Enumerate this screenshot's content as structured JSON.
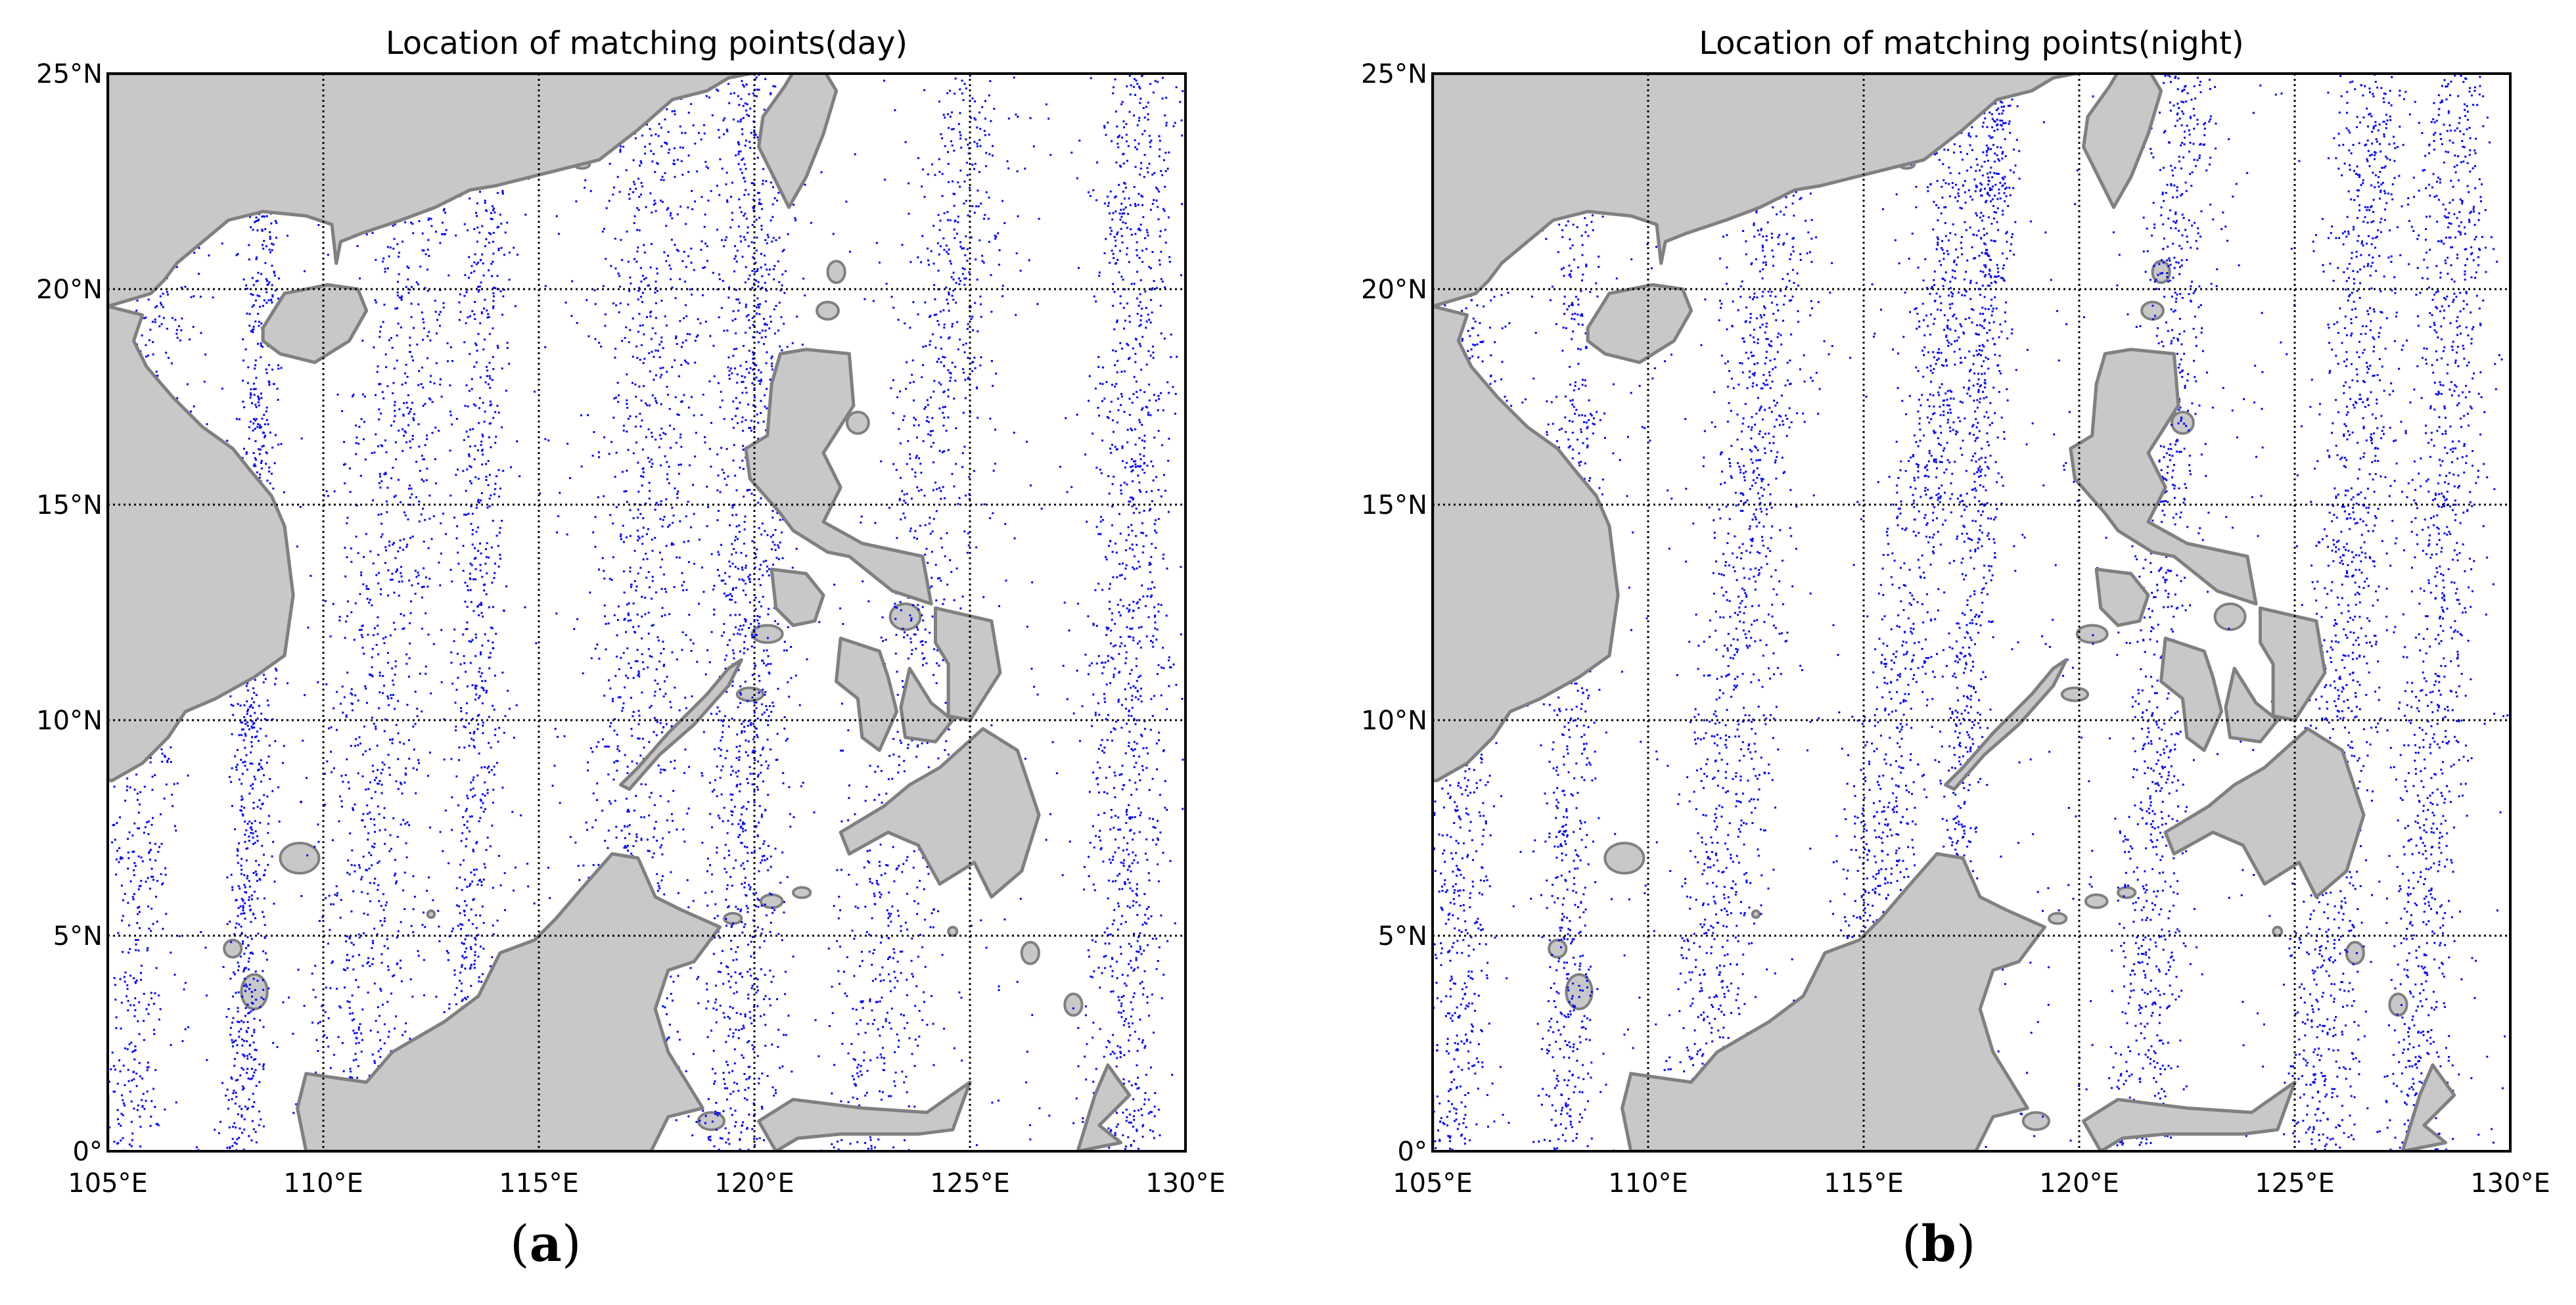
{
  "colors": {
    "land": "#c8c8c8",
    "coast": "#808080",
    "points": "#0000ff",
    "grid": "#000000",
    "frame": "#000000"
  },
  "axes": {
    "x_ticks": [
      "105°E",
      "110°E",
      "115°E",
      "120°E",
      "125°E",
      "130°E"
    ],
    "y_ticks": [
      "0°",
      "5°N",
      "10°N",
      "15°N",
      "20°N",
      "25°N"
    ],
    "lon_range": [
      105,
      130
    ],
    "lat_range": [
      0,
      25
    ],
    "grid": "dotted"
  },
  "panels": [
    {
      "title": "Location of matching points(day)",
      "label": "a",
      "point_density": "dense along track swaths"
    },
    {
      "title": "Location of matching points(night)",
      "label": "b",
      "point_density": "dense along track swaths"
    }
  ],
  "chart_data": [
    {
      "type": "scatter",
      "title": "Location of matching points(day)",
      "xlim": [
        105,
        130
      ],
      "ylim": [
        0,
        25
      ],
      "x_ticks": [
        "105°E",
        "110°E",
        "115°E",
        "120°E",
        "125°E",
        "130°E"
      ],
      "y_ticks": [
        "0°",
        "5°N",
        "10°N",
        "15°N",
        "20°N",
        "25°N"
      ]
    },
    {
      "type": "scatter",
      "title": "Location of matching points(night)",
      "xlim": [
        105,
        130
      ],
      "ylim": [
        0,
        25
      ],
      "x_ticks": [
        "105°E",
        "110°E",
        "115°E",
        "120°E",
        "125°E",
        "130°E"
      ],
      "y_ticks": [
        "0°",
        "5°N",
        "10°N",
        "15°N",
        "20°N",
        "25°N"
      ]
    }
  ]
}
